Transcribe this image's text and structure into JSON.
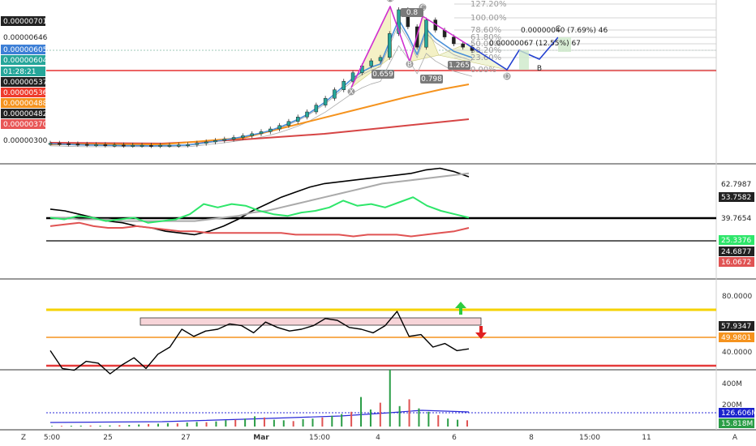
{
  "chart_data": [
    {
      "type": "candlestick",
      "pane": "price",
      "ylabel_tags": [
        {
          "text": "0.00000701",
          "bg": "#222222"
        },
        {
          "text": "0.00000646",
          "bg": "#ffffff"
        },
        {
          "text": "0.00000605",
          "bg": "#3d7fd6"
        },
        {
          "text": "0.00000604",
          "bg": "#26a69a"
        },
        {
          "text": "01:28:21",
          "bg": "#26a69a"
        },
        {
          "text": "0.00000537",
          "bg": "#222222"
        },
        {
          "text": "0.00000536",
          "bg": "#ef3b2c"
        },
        {
          "text": "0.00000488",
          "bg": "#f5931e"
        },
        {
          "text": "0.00000482",
          "bg": "#222222"
        },
        {
          "text": "0.00000370",
          "bg": "#e85656"
        },
        {
          "text": "0.00000300",
          "bg": "#ffffff"
        }
      ],
      "fib_levels": [
        "127.20%",
        "100.00%",
        "78.60%",
        "61.80%",
        "50.00%",
        "38.20%",
        "23.60%",
        "0.00%"
      ],
      "pattern_points": [
        "X",
        "A",
        "B",
        "C",
        "D"
      ],
      "projection_points": [
        "D",
        "B",
        "C"
      ],
      "ratios": [
        "0.8",
        "0.659",
        "0.798",
        "1.265"
      ],
      "measure_labels": [
        "0.00000040 (7.69%) 46",
        "0.00000067 (12.55%) 67"
      ],
      "close_series": [
        2.78,
        2.77,
        2.76,
        2.75,
        2.74,
        2.74,
        2.73,
        2.73,
        2.72,
        2.72,
        2.72,
        2.71,
        2.72,
        2.72,
        2.73,
        2.74,
        2.78,
        2.82,
        2.86,
        2.9,
        2.95,
        3.0,
        3.06,
        3.12,
        3.2,
        3.3,
        3.42,
        3.55,
        3.7,
        3.9,
        4.1,
        4.35,
        4.6,
        4.85,
        5.05,
        5.2,
        5.3,
        6.0,
        6.7,
        6.2,
        5.6,
        6.4,
        6.1,
        5.9,
        5.7,
        5.6,
        5.5
      ]
    },
    {
      "type": "line",
      "pane": "oscillator",
      "series": [
        {
          "color": "#000000",
          "values": [
            41,
            40,
            38,
            36,
            34,
            33,
            31,
            30,
            28,
            27,
            26,
            28,
            31,
            35,
            40,
            44,
            48,
            51,
            54,
            56,
            57,
            58,
            59,
            60,
            61,
            62,
            64,
            65,
            63,
            60
          ]
        },
        {
          "color": "#aaaaaa",
          "values": [
            36,
            36,
            35,
            35,
            35,
            34,
            34,
            34,
            34,
            34,
            34,
            35,
            36,
            37,
            39,
            40,
            42,
            44,
            46,
            48,
            50,
            52,
            54,
            56,
            57,
            58,
            59,
            60,
            61,
            62
          ]
        },
        {
          "color": "#2ee66a",
          "values": [
            36,
            35,
            37,
            36,
            34,
            35,
            36,
            33,
            34,
            35,
            38,
            44,
            42,
            44,
            43,
            40,
            38,
            37,
            39,
            40,
            42,
            46,
            43,
            44,
            42,
            45,
            48,
            43,
            40,
            38,
            36
          ]
        },
        {
          "color": "#e05353",
          "values": [
            31,
            32,
            33,
            31,
            30,
            30,
            31,
            30,
            29,
            28,
            28,
            27,
            27,
            27,
            27,
            27,
            27,
            26,
            26,
            26,
            26,
            25,
            26,
            26,
            26,
            25,
            26,
            27,
            28,
            30
          ]
        }
      ],
      "ylabel_tags": [
        {
          "text": "62.7987",
          "bg": "#ffffff"
        },
        {
          "text": "53.7582",
          "bg": "#222222"
        },
        {
          "text": "39.7654",
          "bg": "#ffffff"
        },
        {
          "text": "25.3376",
          "bg": "#2ee66a"
        },
        {
          "text": "24.6877",
          "bg": "#222222"
        },
        {
          "text": "16.0672",
          "bg": "#e05353"
        }
      ]
    },
    {
      "type": "line",
      "pane": "stochastic",
      "series": [
        {
          "color": "#000000",
          "values": [
            58,
            48,
            47,
            52,
            51,
            45,
            50,
            54,
            48,
            56,
            60,
            70,
            66,
            69,
            70,
            73,
            72,
            68,
            74,
            71,
            69,
            70,
            72,
            76,
            75,
            71,
            70,
            68,
            72,
            80,
            66,
            67,
            60,
            62,
            58,
            59
          ]
        }
      ],
      "levels": [
        {
          "color": "#f5d200"
        },
        {
          "color": "#f5931e"
        },
        {
          "color": "#e53a3a"
        }
      ],
      "tick_labels": [
        "80.0000",
        "40.0000"
      ],
      "ylabel_tags": [
        {
          "text": "57.9347",
          "bg": "#222222"
        },
        {
          "text": "49.9801",
          "bg": "#f5931e"
        }
      ]
    },
    {
      "type": "bar",
      "pane": "volume",
      "values": [
        5,
        6,
        7,
        8,
        9,
        8,
        10,
        12,
        14,
        18,
        22,
        25,
        30,
        28,
        35,
        40,
        38,
        45,
        55,
        60,
        70,
        90,
        80,
        60,
        55,
        48,
        65,
        70,
        80,
        95,
        110,
        130,
        260,
        150,
        210,
        500,
        180,
        240,
        160,
        130,
        100,
        70,
        60,
        55
      ],
      "tick_labels": [
        "400M",
        "200M"
      ],
      "ylabel_tags": [
        {
          "text": "126.606M",
          "bg": "#1a22cc"
        },
        {
          "text": "15.818M",
          "bg": "#2a9d46"
        }
      ]
    }
  ],
  "time_axis": [
    "5:00",
    "25",
    "27",
    "Mar",
    "15:00",
    "4",
    "6",
    "8",
    "15:00",
    "11"
  ],
  "corner_labels": {
    "left": "Z",
    "right": "A"
  }
}
